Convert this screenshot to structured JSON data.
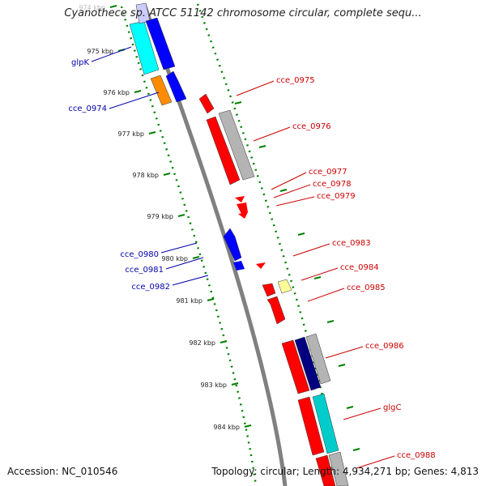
{
  "title": "Cyanothece sp. ATCC 51142 chromosome circular, complete sequ...",
  "accession": "Accession: NC_010546",
  "summary": "Topology: circular; Length: 4,934,271 bp; Genes: 4,813",
  "ticks": [
    "974 kbp",
    "975 kbp",
    "976 kbp",
    "977 kbp",
    "978 kbp",
    "979 kbp",
    "980 kbp",
    "981 kbp",
    "982 kbp",
    "983 kbp",
    "984 kbp"
  ],
  "gene_labels_left": [
    "glpK",
    "cce_0974",
    "cce_0980",
    "cce_0981",
    "cce_0982"
  ],
  "gene_labels_right": [
    "cce_0975",
    "cce_0976",
    "cce_0977",
    "cce_0978",
    "cce_0979",
    "cce_0983",
    "cce_0984",
    "cce_0985",
    "cce_0986",
    "glgC",
    "cce_0988"
  ],
  "colors": {
    "cds_forward": "#ff0000",
    "cds_reverse": "#0000ff",
    "trna": "#ff8c00",
    "other": "#00ffff",
    "pseudo": "#b4b4b4",
    "misc": "#ffff99",
    "dark": "#000080",
    "label_left": "#0000aa",
    "label_right": "#cc0000",
    "tick": "#008000",
    "backbone": "#808080"
  }
}
